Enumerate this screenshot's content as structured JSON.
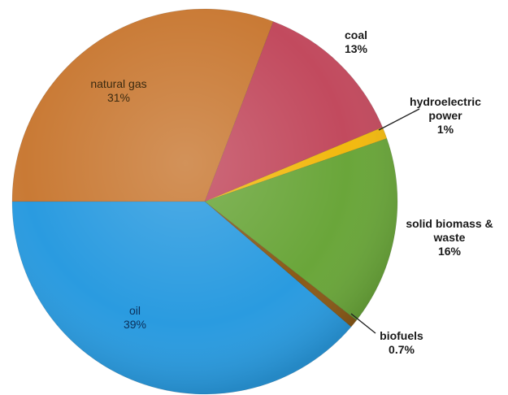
{
  "chart_data": {
    "type": "pie",
    "start_angle_deg": 180,
    "direction": "clockwise",
    "slices": [
      {
        "label": "natural gas",
        "value_text": "31%",
        "value": 31,
        "color": "#c97a35"
      },
      {
        "label": "coal",
        "value_text": "13%",
        "value": 13,
        "color": "#c24a5e"
      },
      {
        "label": "hydroelectric\npower",
        "value_text": "1%",
        "value": 1,
        "color": "#f2b90f"
      },
      {
        "label": "solid biomass &\nwaste",
        "value_text": "16%",
        "value": 16,
        "color": "#6aa63a"
      },
      {
        "label": "biofuels",
        "value_text": "0.7%",
        "value": 0.7,
        "color": "#8a5a18"
      },
      {
        "label": "oil",
        "value_text": "39%",
        "value": 39,
        "color": "#2a9be0"
      }
    ]
  }
}
